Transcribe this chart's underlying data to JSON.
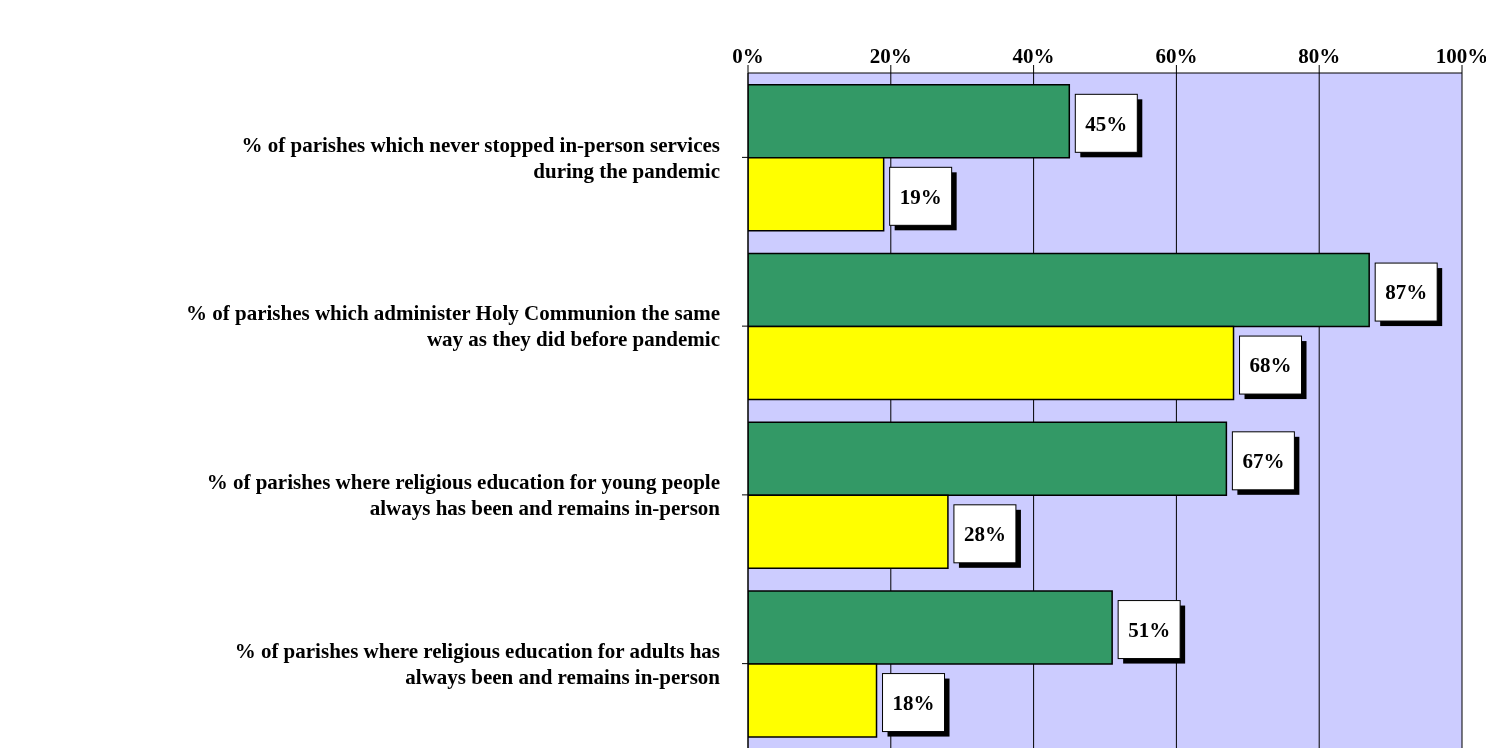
{
  "chart_data": {
    "type": "bar",
    "orientation": "horizontal",
    "categories": [
      "% of parishes which never stopped in-person services during the pandemic",
      "% of parishes which administer Holy Communion the same way as they did before pandemic",
      "% of parishes where religious education for young people always has been and remains in-person",
      "% of parishes where religious education for adults has always been and remains in-person"
    ],
    "series": [
      {
        "color": "#339966",
        "values": [
          45,
          87,
          67,
          51
        ],
        "value_labels": [
          "45%",
          "87%",
          "67%",
          "51%"
        ]
      },
      {
        "color": "#ffff00",
        "values": [
          19,
          68,
          28,
          18
        ],
        "value_labels": [
          "19%",
          "68%",
          "28%",
          "18%"
        ]
      }
    ],
    "xlim": [
      0,
      100
    ],
    "xticks": [
      {
        "value": 0,
        "label": "0%"
      },
      {
        "value": 20,
        "label": "20%"
      },
      {
        "value": 40,
        "label": "40%"
      },
      {
        "value": 60,
        "label": "60%"
      },
      {
        "value": 80,
        "label": "80%"
      },
      {
        "value": 100,
        "label": "100%"
      }
    ],
    "grid": "x",
    "legend": false
  }
}
